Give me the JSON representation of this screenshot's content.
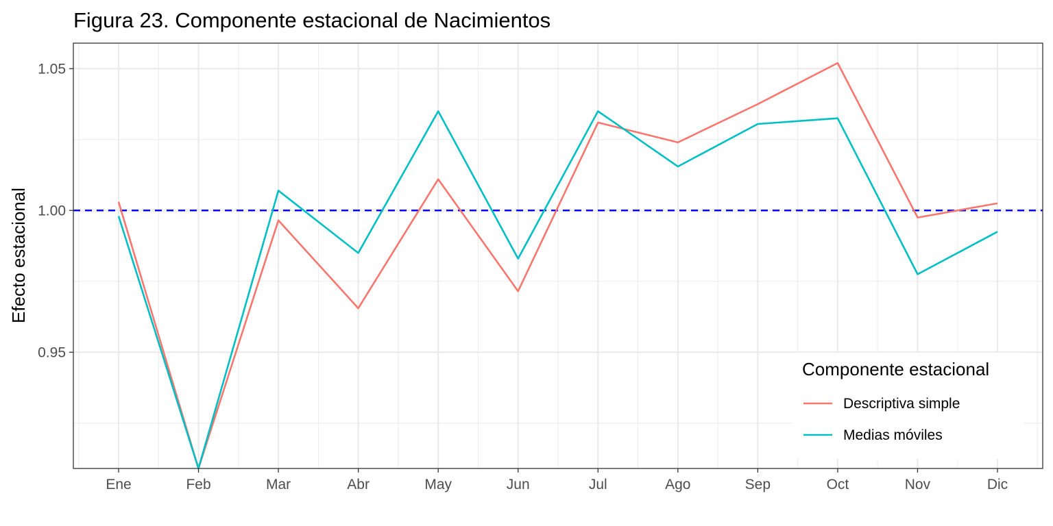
{
  "chart_data": {
    "type": "line",
    "title": "Figura 23. Componente estacional de Nacimientos",
    "xlabel": "",
    "ylabel": "Efecto estacional",
    "categories": [
      "Ene",
      "Feb",
      "Mar",
      "Abr",
      "May",
      "Jun",
      "Jul",
      "Ago",
      "Sep",
      "Oct",
      "Nov",
      "Dic"
    ],
    "ylim": [
      0.909,
      1.059
    ],
    "yticks": [
      0.95,
      1.0,
      1.05
    ],
    "ytick_labels": [
      "0.95",
      "1.00",
      "1.05"
    ],
    "grid": true,
    "reference_line": {
      "y": 1.0,
      "style": "dashed",
      "color": "#0000ff"
    },
    "legend": {
      "title": "Componente estacional",
      "position": "bottom-right"
    },
    "series": [
      {
        "name": "Descriptiva simple",
        "color": "#f8766d",
        "values": [
          1.003,
          0.909,
          0.9965,
          0.9655,
          1.011,
          0.9715,
          1.031,
          1.024,
          1.0375,
          1.052,
          0.9975,
          1.0025
        ]
      },
      {
        "name": "Medias móviles",
        "color": "#00bfc4",
        "values": [
          0.998,
          0.909,
          1.007,
          0.985,
          1.035,
          0.983,
          1.035,
          1.0155,
          1.0305,
          1.0325,
          0.9775,
          0.9925
        ]
      }
    ]
  }
}
